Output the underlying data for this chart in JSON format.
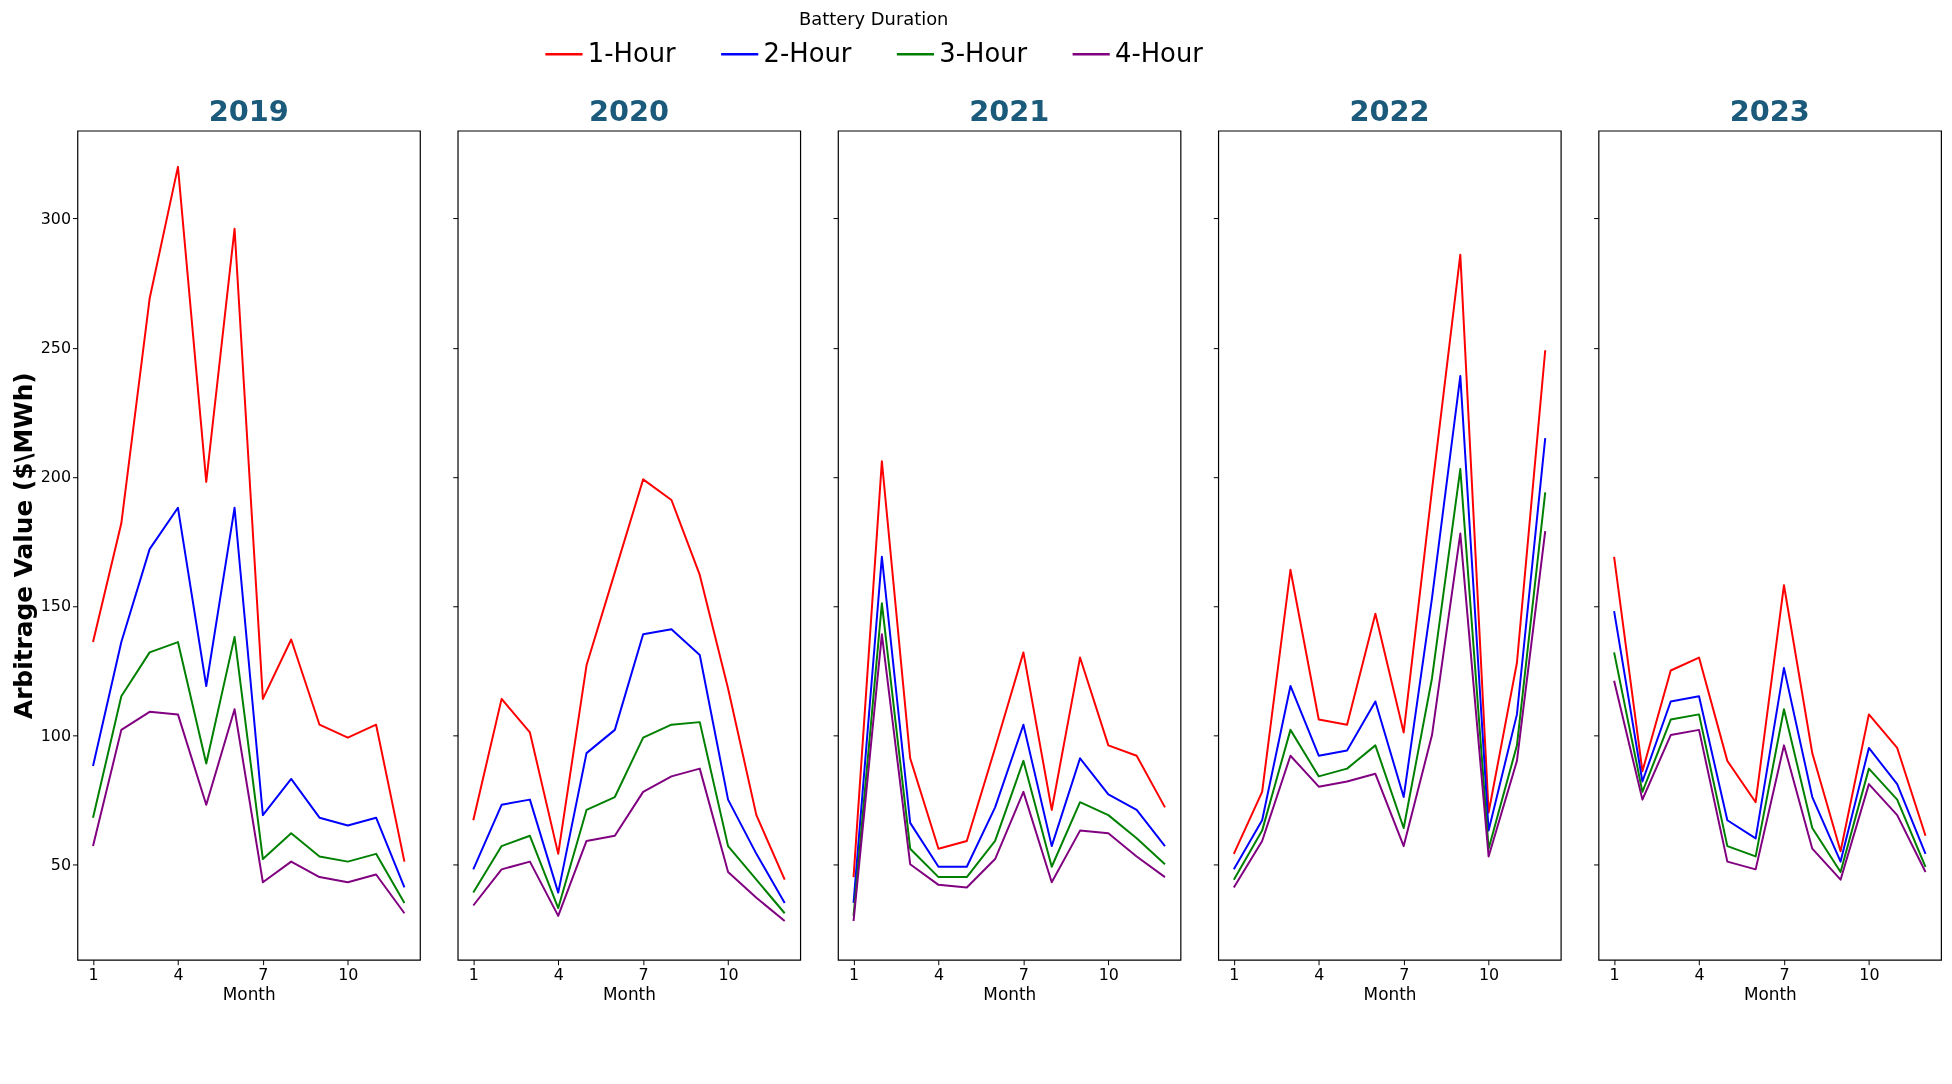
{
  "chart_data": [
    {
      "type": "line",
      "title": "2019",
      "xlabel": "Month",
      "ylabel": "Arbitrage Value ($\\MWh)",
      "legend_title": "Battery Duration",
      "legend": "top",
      "grid": false,
      "x": [
        1,
        2,
        3,
        4,
        5,
        6,
        7,
        8,
        9,
        10,
        11,
        12
      ],
      "xlim": [
        0.45,
        12.55
      ],
      "xticks": [
        1,
        4,
        7,
        10
      ],
      "ylim": [
        13,
        334
      ],
      "yticks": [
        50,
        100,
        150,
        200,
        250,
        300
      ],
      "series": [
        {
          "name": "1-Hour",
          "color": "#ff0000",
          "values": [
            136,
            182,
            269,
            320,
            198,
            296,
            114,
            137,
            104,
            99,
            104,
            51
          ]
        },
        {
          "name": "2-Hour",
          "color": "#0000ff",
          "values": [
            88,
            136,
            172,
            188,
            119,
            188,
            69,
            83,
            68,
            65,
            68,
            41
          ]
        },
        {
          "name": "3-Hour",
          "color": "#008000",
          "values": [
            68,
            115,
            132,
            136,
            89,
            138,
            52,
            62,
            53,
            51,
            54,
            35
          ]
        },
        {
          "name": "4-Hour",
          "color": "#800080",
          "values": [
            57,
            102,
            109,
            108,
            73,
            110,
            43,
            51,
            45,
            43,
            46,
            31
          ]
        }
      ]
    },
    {
      "type": "line",
      "title": "2020",
      "xlabel": "Month",
      "tick_labels": "x",
      "grid": false,
      "x": [
        1,
        2,
        3,
        4,
        5,
        6,
        7,
        8,
        9,
        10,
        11,
        12
      ],
      "xlim": [
        0.45,
        12.55
      ],
      "xticks": [
        1,
        4,
        7,
        10
      ],
      "ylim": [
        13,
        334
      ],
      "yticks": [
        50,
        100,
        150,
        200,
        250,
        300
      ],
      "series": [
        {
          "color": "#ff0000",
          "values": [
            67,
            114,
            101,
            54,
            127,
            163,
            199,
            191,
            162,
            118,
            69,
            44
          ]
        },
        {
          "color": "#0000ff",
          "values": [
            48,
            73,
            75,
            39,
            93,
            102,
            139,
            141,
            131,
            75,
            54,
            35
          ]
        },
        {
          "color": "#008000",
          "values": [
            39,
            57,
            61,
            33,
            71,
            76,
            99,
            104,
            105,
            57,
            44,
            31
          ]
        },
        {
          "color": "#800080",
          "values": [
            34,
            48,
            51,
            30,
            59,
            61,
            78,
            84,
            87,
            47,
            37,
            28
          ]
        }
      ]
    },
    {
      "type": "line",
      "title": "2021",
      "xlabel": "Month",
      "tick_labels": "x",
      "grid": false,
      "x": [
        1,
        2,
        3,
        4,
        5,
        6,
        7,
        8,
        9,
        10,
        11,
        12
      ],
      "xlim": [
        0.45,
        12.55
      ],
      "xticks": [
        1,
        4,
        7,
        10
      ],
      "ylim": [
        13,
        334
      ],
      "yticks": [
        50,
        100,
        150,
        200,
        250,
        300
      ],
      "series": [
        {
          "color": "#ff0000",
          "values": [
            45,
            206,
            91,
            56,
            59,
            95,
            132,
            71,
            130,
            96,
            92,
            72
          ]
        },
        {
          "color": "#0000ff",
          "values": [
            35,
            169,
            66,
            49,
            49,
            72,
            104,
            57,
            91,
            77,
            71,
            57
          ]
        },
        {
          "color": "#008000",
          "values": [
            30,
            151,
            56,
            45,
            45,
            59,
            90,
            49,
            74,
            69,
            60,
            50
          ]
        },
        {
          "color": "#800080",
          "values": [
            28,
            139,
            50,
            42,
            41,
            52,
            78,
            43,
            63,
            62,
            53,
            45
          ]
        }
      ]
    },
    {
      "type": "line",
      "title": "2022",
      "xlabel": "Month",
      "tick_labels": "x",
      "grid": false,
      "x": [
        1,
        2,
        3,
        4,
        5,
        6,
        7,
        8,
        9,
        10,
        11,
        12
      ],
      "xlim": [
        0.45,
        12.55
      ],
      "xticks": [
        1,
        4,
        7,
        10
      ],
      "ylim": [
        13,
        334
      ],
      "yticks": [
        50,
        100,
        150,
        200,
        250,
        300
      ],
      "series": [
        {
          "color": "#ff0000",
          "values": [
            54,
            78,
            164,
            106,
            104,
            147,
            101,
            195,
            286,
            70,
            128,
            249
          ]
        },
        {
          "color": "#0000ff",
          "values": [
            48,
            67,
            119,
            92,
            94,
            113,
            76,
            153,
            239,
            63,
            108,
            215
          ]
        },
        {
          "color": "#008000",
          "values": [
            44,
            63,
            102,
            84,
            87,
            96,
            64,
            122,
            203,
            56,
            96,
            194
          ]
        },
        {
          "color": "#800080",
          "values": [
            41,
            59,
            92,
            80,
            82,
            85,
            57,
            100,
            178,
            53,
            90,
            179
          ]
        }
      ]
    },
    {
      "type": "line",
      "title": "2023",
      "xlabel": "Month",
      "tick_labels": "x",
      "grid": false,
      "x": [
        1,
        2,
        3,
        4,
        5,
        6,
        7,
        8,
        9,
        10,
        11,
        12
      ],
      "xlim": [
        0.45,
        12.55
      ],
      "xticks": [
        1,
        4,
        7,
        10
      ],
      "ylim": [
        13,
        334
      ],
      "yticks": [
        50,
        100,
        150,
        200,
        250,
        300
      ],
      "series": [
        {
          "color": "#ff0000",
          "values": [
            169,
            86,
            125,
            130,
            90,
            74,
            158,
            93,
            55,
            108,
            95,
            61
          ]
        },
        {
          "color": "#0000ff",
          "values": [
            148,
            82,
            113,
            115,
            67,
            60,
            126,
            76,
            51,
            95,
            81,
            54
          ]
        },
        {
          "color": "#008000",
          "values": [
            132,
            78,
            106,
            108,
            57,
            53,
            110,
            64,
            47,
            87,
            75,
            49
          ]
        },
        {
          "color": "#800080",
          "values": [
            121,
            75,
            100,
            102,
            51,
            48,
            96,
            56,
            44,
            81,
            69,
            47
          ]
        }
      ]
    }
  ]
}
